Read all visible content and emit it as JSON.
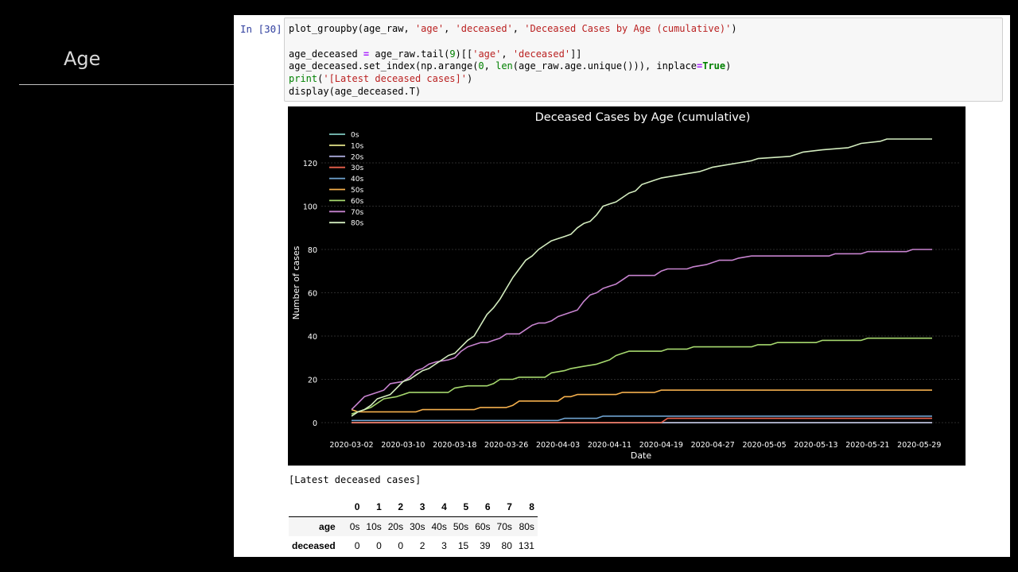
{
  "slide": {
    "title": "Age"
  },
  "cell": {
    "prompt": "In [30]:",
    "code_lines": [
      "plot_groupby(age_raw, 'age', 'deceased', 'Deceased Cases by Age (cumulative)')",
      "",
      "age_deceased = age_raw.tail(9)[['age', 'deceased']]",
      "age_deceased.set_index(np.arange(0, len(age_raw.age.unique())), inplace=True)",
      "print('[Latest deceased cases]')",
      "display(age_deceased.T)"
    ]
  },
  "output": {
    "printed": "[Latest deceased cases]",
    "table": {
      "columns": [
        "0",
        "1",
        "2",
        "3",
        "4",
        "5",
        "6",
        "7",
        "8"
      ],
      "rows": [
        {
          "label": "age",
          "values": [
            "0s",
            "10s",
            "20s",
            "30s",
            "40s",
            "50s",
            "60s",
            "70s",
            "80s"
          ]
        },
        {
          "label": "deceased",
          "values": [
            "0",
            "0",
            "0",
            "2",
            "3",
            "15",
            "39",
            "80",
            "131"
          ]
        }
      ]
    }
  },
  "chart_data": {
    "type": "line",
    "title": "Deceased Cases by Age (cumulative)",
    "xlabel": "Date",
    "ylabel": "Number of cases",
    "ylim": [
      0,
      131
    ],
    "yticks": [
      0,
      20,
      40,
      60,
      80,
      100,
      120
    ],
    "xticks": [
      "2020-03-02",
      "2020-03-10",
      "2020-03-18",
      "2020-03-26",
      "2020-04-03",
      "2020-04-11",
      "2020-04-19",
      "2020-04-27",
      "2020-05-05",
      "2020-05-13",
      "2020-05-21",
      "2020-05-29"
    ],
    "x_start": "2020-03-02",
    "x_end": "2020-05-31",
    "grid": true,
    "legend_position": "top-left",
    "background": "#000000",
    "series": [
      {
        "name": "0s",
        "color": "#7fc9c0",
        "points": [
          [
            "2020-03-02",
            0
          ],
          [
            "2020-05-31",
            0
          ]
        ]
      },
      {
        "name": "10s",
        "color": "#e6e68a",
        "points": [
          [
            "2020-03-02",
            0
          ],
          [
            "2020-05-31",
            0
          ]
        ]
      },
      {
        "name": "20s",
        "color": "#a9a9d9",
        "points": [
          [
            "2020-03-02",
            0
          ],
          [
            "2020-05-31",
            0
          ]
        ]
      },
      {
        "name": "30s",
        "color": "#e8604c",
        "points": [
          [
            "2020-03-02",
            0
          ],
          [
            "2020-04-19",
            0
          ],
          [
            "2020-04-20",
            2
          ],
          [
            "2020-05-31",
            2
          ]
        ]
      },
      {
        "name": "40s",
        "color": "#6fa3d1",
        "points": [
          [
            "2020-03-02",
            1
          ],
          [
            "2020-04-03",
            1
          ],
          [
            "2020-04-04",
            2
          ],
          [
            "2020-04-09",
            2
          ],
          [
            "2020-04-10",
            3
          ],
          [
            "2020-05-31",
            3
          ]
        ]
      },
      {
        "name": "50s",
        "color": "#f5b04d",
        "points": [
          [
            "2020-03-02",
            6
          ],
          [
            "2020-03-03",
            5
          ],
          [
            "2020-03-12",
            5
          ],
          [
            "2020-03-13",
            6
          ],
          [
            "2020-03-21",
            6
          ],
          [
            "2020-03-22",
            7
          ],
          [
            "2020-03-26",
            7
          ],
          [
            "2020-03-27",
            8
          ],
          [
            "2020-03-28",
            10
          ],
          [
            "2020-04-03",
            10
          ],
          [
            "2020-04-04",
            12
          ],
          [
            "2020-04-05",
            12
          ],
          [
            "2020-04-06",
            13
          ],
          [
            "2020-04-12",
            13
          ],
          [
            "2020-04-13",
            14
          ],
          [
            "2020-04-18",
            14
          ],
          [
            "2020-04-19",
            15
          ],
          [
            "2020-05-31",
            15
          ]
        ]
      },
      {
        "name": "60s",
        "color": "#a6d86e",
        "points": [
          [
            "2020-03-02",
            4
          ],
          [
            "2020-03-05",
            7
          ],
          [
            "2020-03-06",
            9
          ],
          [
            "2020-03-07",
            11
          ],
          [
            "2020-03-09",
            12
          ],
          [
            "2020-03-10",
            13
          ],
          [
            "2020-03-11",
            14
          ],
          [
            "2020-03-17",
            14
          ],
          [
            "2020-03-18",
            16
          ],
          [
            "2020-03-20",
            17
          ],
          [
            "2020-03-23",
            17
          ],
          [
            "2020-03-24",
            18
          ],
          [
            "2020-03-25",
            20
          ],
          [
            "2020-03-27",
            20
          ],
          [
            "2020-03-28",
            21
          ],
          [
            "2020-04-01",
            21
          ],
          [
            "2020-04-02",
            23
          ],
          [
            "2020-04-04",
            24
          ],
          [
            "2020-04-05",
            25
          ],
          [
            "2020-04-07",
            26
          ],
          [
            "2020-04-09",
            27
          ],
          [
            "2020-04-11",
            29
          ],
          [
            "2020-04-12",
            31
          ],
          [
            "2020-04-13",
            32
          ],
          [
            "2020-04-14",
            33
          ],
          [
            "2020-04-19",
            33
          ],
          [
            "2020-04-20",
            34
          ],
          [
            "2020-04-23",
            34
          ],
          [
            "2020-04-24",
            35
          ],
          [
            "2020-05-03",
            35
          ],
          [
            "2020-05-04",
            36
          ],
          [
            "2020-05-06",
            36
          ],
          [
            "2020-05-07",
            37
          ],
          [
            "2020-05-13",
            37
          ],
          [
            "2020-05-14",
            38
          ],
          [
            "2020-05-20",
            38
          ],
          [
            "2020-05-21",
            39
          ],
          [
            "2020-05-31",
            39
          ]
        ]
      },
      {
        "name": "70s",
        "color": "#c783cf",
        "points": [
          [
            "2020-03-02",
            6
          ],
          [
            "2020-03-03",
            9
          ],
          [
            "2020-03-04",
            12
          ],
          [
            "2020-03-06",
            14
          ],
          [
            "2020-03-07",
            15
          ],
          [
            "2020-03-08",
            18
          ],
          [
            "2020-03-10",
            19
          ],
          [
            "2020-03-11",
            21
          ],
          [
            "2020-03-12",
            24
          ],
          [
            "2020-03-13",
            25
          ],
          [
            "2020-03-14",
            27
          ],
          [
            "2020-03-15",
            28
          ],
          [
            "2020-03-17",
            29
          ],
          [
            "2020-03-18",
            30
          ],
          [
            "2020-03-19",
            33
          ],
          [
            "2020-03-20",
            35
          ],
          [
            "2020-03-21",
            36
          ],
          [
            "2020-03-22",
            37
          ],
          [
            "2020-03-23",
            37
          ],
          [
            "2020-03-24",
            38
          ],
          [
            "2020-03-25",
            39
          ],
          [
            "2020-03-26",
            41
          ],
          [
            "2020-03-28",
            41
          ],
          [
            "2020-03-29",
            43
          ],
          [
            "2020-03-30",
            45
          ],
          [
            "2020-03-31",
            46
          ],
          [
            "2020-04-01",
            46
          ],
          [
            "2020-04-02",
            47
          ],
          [
            "2020-04-03",
            49
          ],
          [
            "2020-04-05",
            51
          ],
          [
            "2020-04-06",
            52
          ],
          [
            "2020-04-07",
            56
          ],
          [
            "2020-04-08",
            59
          ],
          [
            "2020-04-09",
            60
          ],
          [
            "2020-04-10",
            62
          ],
          [
            "2020-04-11",
            63
          ],
          [
            "2020-04-12",
            64
          ],
          [
            "2020-04-13",
            66
          ],
          [
            "2020-04-14",
            68
          ],
          [
            "2020-04-18",
            68
          ],
          [
            "2020-04-19",
            70
          ],
          [
            "2020-04-20",
            71
          ],
          [
            "2020-04-23",
            71
          ],
          [
            "2020-04-24",
            72
          ],
          [
            "2020-04-26",
            73
          ],
          [
            "2020-04-28",
            75
          ],
          [
            "2020-04-30",
            75
          ],
          [
            "2020-05-01",
            76
          ],
          [
            "2020-05-03",
            77
          ],
          [
            "2020-05-15",
            77
          ],
          [
            "2020-05-16",
            78
          ],
          [
            "2020-05-20",
            78
          ],
          [
            "2020-05-21",
            79
          ],
          [
            "2020-05-27",
            79
          ],
          [
            "2020-05-28",
            80
          ],
          [
            "2020-05-31",
            80
          ]
        ]
      },
      {
        "name": "80s",
        "color": "#d3ecbf",
        "points": [
          [
            "2020-03-02",
            3
          ],
          [
            "2020-03-03",
            5
          ],
          [
            "2020-03-04",
            6
          ],
          [
            "2020-03-05",
            8
          ],
          [
            "2020-03-06",
            11
          ],
          [
            "2020-03-08",
            13
          ],
          [
            "2020-03-09",
            16
          ],
          [
            "2020-03-10",
            19
          ],
          [
            "2020-03-11",
            20
          ],
          [
            "2020-03-12",
            22
          ],
          [
            "2020-03-13",
            24
          ],
          [
            "2020-03-14",
            25
          ],
          [
            "2020-03-15",
            27
          ],
          [
            "2020-03-16",
            29
          ],
          [
            "2020-03-17",
            31
          ],
          [
            "2020-03-18",
            32
          ],
          [
            "2020-03-19",
            35
          ],
          [
            "2020-03-20",
            38
          ],
          [
            "2020-03-21",
            40
          ],
          [
            "2020-03-22",
            45
          ],
          [
            "2020-03-23",
            50
          ],
          [
            "2020-03-24",
            53
          ],
          [
            "2020-03-25",
            57
          ],
          [
            "2020-03-26",
            62
          ],
          [
            "2020-03-27",
            67
          ],
          [
            "2020-03-28",
            71
          ],
          [
            "2020-03-29",
            75
          ],
          [
            "2020-03-30",
            77
          ],
          [
            "2020-03-31",
            80
          ],
          [
            "2020-04-01",
            82
          ],
          [
            "2020-04-02",
            84
          ],
          [
            "2020-04-03",
            85
          ],
          [
            "2020-04-04",
            86
          ],
          [
            "2020-04-05",
            87
          ],
          [
            "2020-04-06",
            90
          ],
          [
            "2020-04-07",
            92
          ],
          [
            "2020-04-08",
            93
          ],
          [
            "2020-04-09",
            96
          ],
          [
            "2020-04-10",
            100
          ],
          [
            "2020-04-11",
            101
          ],
          [
            "2020-04-12",
            102
          ],
          [
            "2020-04-13",
            104
          ],
          [
            "2020-04-14",
            106
          ],
          [
            "2020-04-15",
            107
          ],
          [
            "2020-04-16",
            110
          ],
          [
            "2020-04-17",
            111
          ],
          [
            "2020-04-18",
            112
          ],
          [
            "2020-04-19",
            113
          ],
          [
            "2020-04-21",
            114
          ],
          [
            "2020-04-23",
            115
          ],
          [
            "2020-04-25",
            116
          ],
          [
            "2020-04-26",
            117
          ],
          [
            "2020-04-27",
            118
          ],
          [
            "2020-04-29",
            119
          ],
          [
            "2020-05-01",
            120
          ],
          [
            "2020-05-03",
            121
          ],
          [
            "2020-05-04",
            122
          ],
          [
            "2020-05-09",
            123
          ],
          [
            "2020-05-10",
            124
          ],
          [
            "2020-05-11",
            125
          ],
          [
            "2020-05-14",
            126
          ],
          [
            "2020-05-18",
            127
          ],
          [
            "2020-05-19",
            128
          ],
          [
            "2020-05-20",
            129
          ],
          [
            "2020-05-23",
            130
          ],
          [
            "2020-05-24",
            131
          ],
          [
            "2020-05-31",
            131
          ]
        ]
      }
    ]
  }
}
